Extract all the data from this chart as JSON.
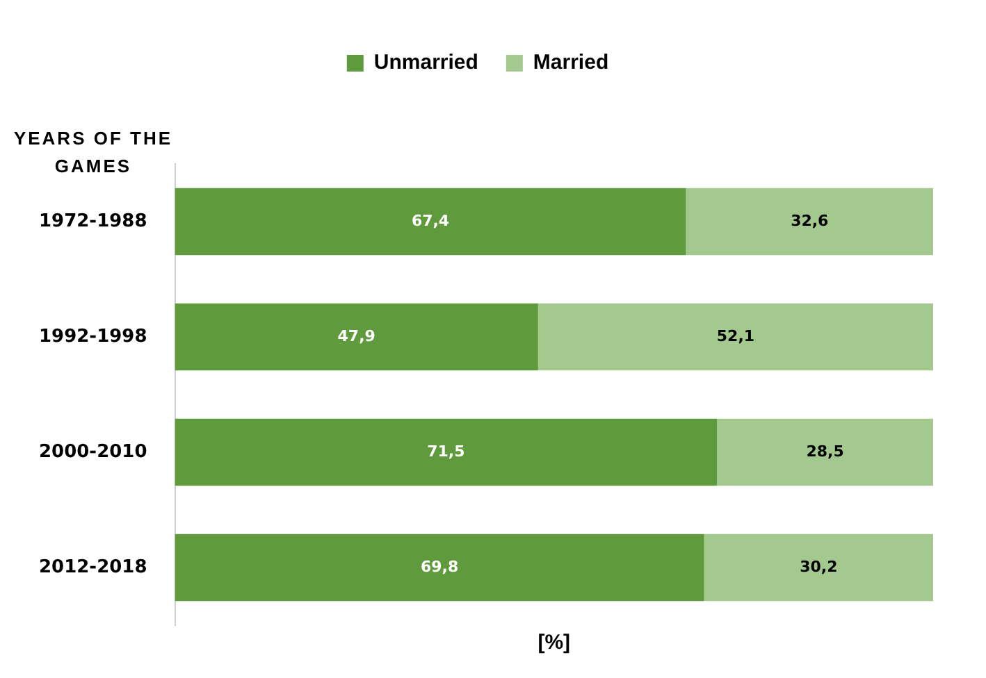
{
  "chart_data": {
    "type": "bar",
    "orientation": "horizontal",
    "stacked": true,
    "ylabel": "YEARS OF THE GAMES",
    "xlabel": "[%]",
    "categories": [
      "1972-1988",
      "1992-1998",
      "2000-2010",
      "2012-2018"
    ],
    "series": [
      {
        "name": "Unmarried",
        "color": "#5f9a3c",
        "values": [
          67.4,
          47.9,
          71.5,
          69.8
        ],
        "value_labels": [
          "67,4",
          "47,9",
          "71,5",
          "69,8"
        ]
      },
      {
        "name": "Married",
        "color": "#a3c98f",
        "values": [
          32.6,
          52.1,
          28.5,
          30.2
        ],
        "value_labels": [
          "32,6",
          "52,1",
          "28,5",
          "30,2"
        ]
      }
    ],
    "legend": "top",
    "grid": false,
    "tick_labels": "y"
  }
}
